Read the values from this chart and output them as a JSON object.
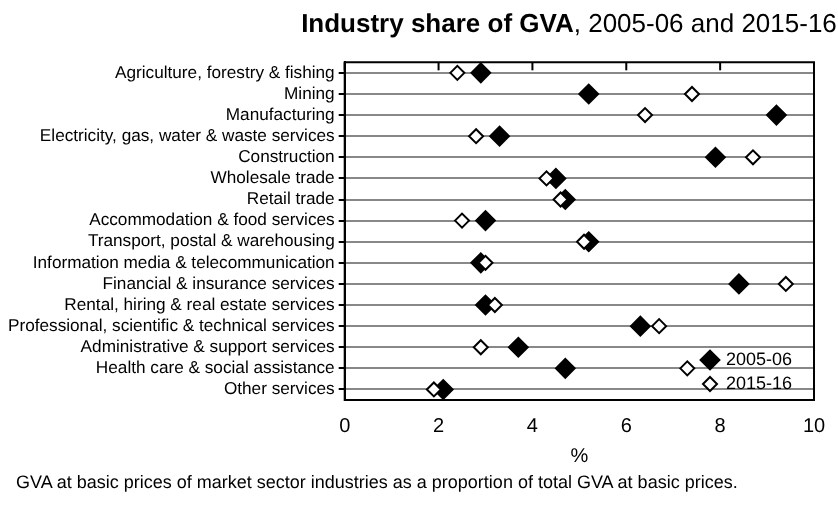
{
  "chart_data": {
    "type": "scatter",
    "title": "Industry share of GVA, 2005-06 and 2015-16",
    "xlabel": "%",
    "orientation": "horizontal",
    "categories": [
      "Agriculture, forestry & fishing",
      "Mining",
      "Manufacturing",
      "Electricity, gas, water & waste services",
      "Construction",
      "Wholesale trade",
      "Retail trade",
      "Accommodation & food services",
      "Transport, postal & warehousing",
      "Information media & telecommunication",
      "Financial & insurance services",
      "Rental, hiring & real estate services",
      "Professional, scientific & technical services",
      "Administrative & support services",
      "Health care & social assistance",
      "Other services"
    ],
    "series": [
      {
        "name": "2005-06",
        "color": "#000000",
        "values": [
          2.9,
          5.2,
          9.2,
          3.3,
          7.9,
          4.5,
          4.7,
          3.0,
          5.2,
          2.9,
          8.4,
          3.0,
          6.3,
          3.7,
          4.7,
          2.1
        ]
      },
      {
        "name": "2015-16",
        "color": "#ffffff",
        "values": [
          2.4,
          7.4,
          6.4,
          2.8,
          8.7,
          4.3,
          4.6,
          2.5,
          5.1,
          3.0,
          9.4,
          3.2,
          6.7,
          2.9,
          7.3,
          1.9
        ]
      }
    ],
    "xlim": [
      0,
      10
    ],
    "xticks": [
      0,
      2,
      4,
      6,
      8,
      10
    ],
    "grid": "y",
    "marker": "diamond",
    "legend": "bottom right",
    "annotations": [
      "GVA at basic prices of market sector industries as a proportion of total GVA at basic prices."
    ]
  }
}
